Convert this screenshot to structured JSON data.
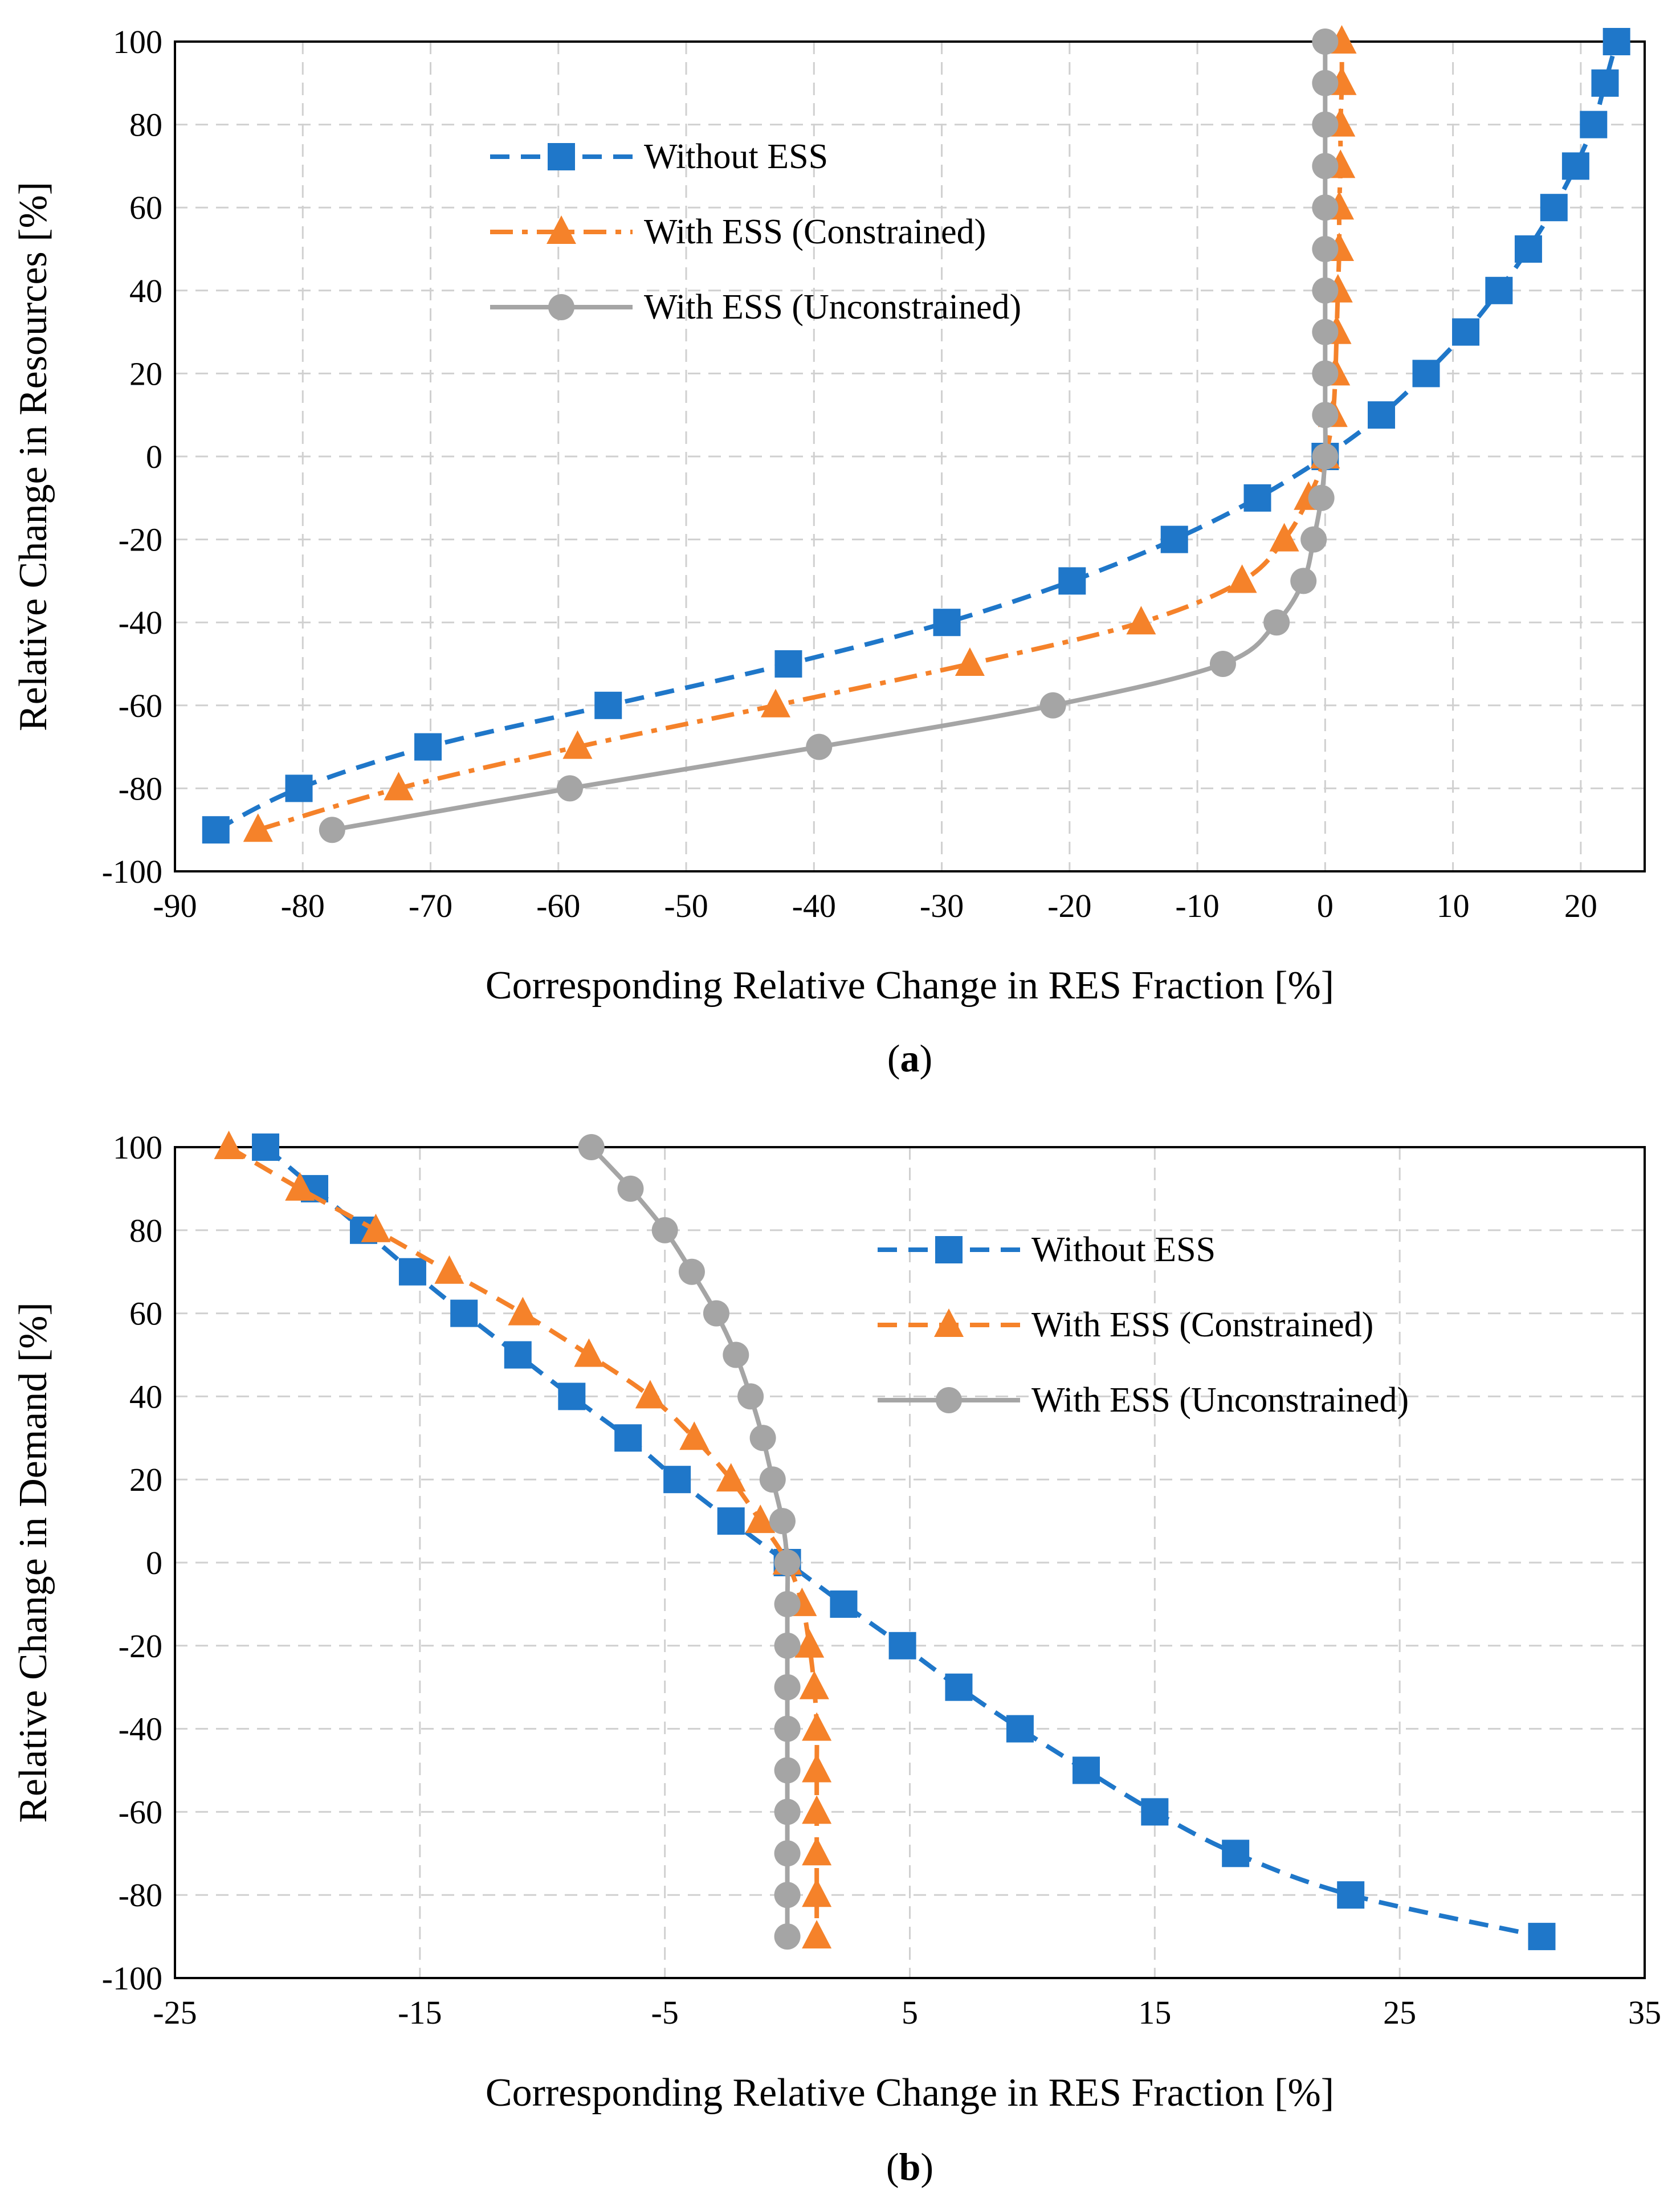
{
  "chart_data": [
    {
      "type": "line",
      "panel_label": "a",
      "xlabel": "Corresponding Relative Change in RES Fraction [%]",
      "ylabel": "Relative Change in Resources [%]",
      "xlim": [
        -90,
        25
      ],
      "ylim": [
        -100,
        100
      ],
      "xticks": [
        -90,
        -80,
        -70,
        -60,
        -50,
        -40,
        -30,
        -20,
        -10,
        0,
        10,
        20
      ],
      "yticks": [
        -100,
        -80,
        -60,
        -40,
        -20,
        0,
        20,
        40,
        60,
        80,
        100
      ],
      "grid": true,
      "legend_position": "upper-left-center",
      "series": [
        {
          "name": "Without ESS",
          "color": "#1f77c9",
          "marker": "square",
          "line": "dashed",
          "points": [
            [
              -86.8,
              -90
            ],
            [
              -80.3,
              -80
            ],
            [
              -70.2,
              -70
            ],
            [
              -56.1,
              -60
            ],
            [
              -42,
              -50
            ],
            [
              -29.6,
              -40
            ],
            [
              -19.8,
              -30
            ],
            [
              -11.8,
              -20
            ],
            [
              -5.3,
              -10
            ],
            [
              0,
              0
            ],
            [
              4.4,
              10
            ],
            [
              7.9,
              20
            ],
            [
              11,
              30
            ],
            [
              13.6,
              40
            ],
            [
              15.9,
              50
            ],
            [
              17.9,
              60
            ],
            [
              19.6,
              70
            ],
            [
              21,
              80
            ],
            [
              21.9,
              90
            ],
            [
              22.8,
              100
            ]
          ]
        },
        {
          "name": "With ESS (Constrained)",
          "color": "#f5822a",
          "marker": "triangle",
          "line": "dashdot",
          "points": [
            [
              -83.5,
              -90
            ],
            [
              -72.5,
              -80
            ],
            [
              -58.5,
              -70
            ],
            [
              -43,
              -60
            ],
            [
              -27.8,
              -50
            ],
            [
              -14.4,
              -40
            ],
            [
              -6.5,
              -30
            ],
            [
              -3.2,
              -20
            ],
            [
              -1.3,
              -10
            ],
            [
              0,
              0
            ],
            [
              0.6,
              10
            ],
            [
              0.8,
              20
            ],
            [
              0.9,
              30
            ],
            [
              1,
              40
            ],
            [
              1.1,
              50
            ],
            [
              1.1,
              60
            ],
            [
              1.2,
              70
            ],
            [
              1.2,
              80
            ],
            [
              1.3,
              90
            ],
            [
              1.3,
              100
            ]
          ]
        },
        {
          "name": "With ESS (Unconstrained)",
          "color": "#a5a5a5",
          "marker": "circle",
          "line": "solid",
          "points": [
            [
              -77.7,
              -90
            ],
            [
              -59.1,
              -80
            ],
            [
              -39.6,
              -70
            ],
            [
              -21.3,
              -60
            ],
            [
              -8,
              -50
            ],
            [
              -3.8,
              -40
            ],
            [
              -1.7,
              -30
            ],
            [
              -0.9,
              -20
            ],
            [
              -0.3,
              -10
            ],
            [
              0,
              0
            ],
            [
              0,
              10
            ],
            [
              0,
              20
            ],
            [
              0,
              30
            ],
            [
              0,
              40
            ],
            [
              0,
              50
            ],
            [
              0,
              60
            ],
            [
              0,
              70
            ],
            [
              0,
              80
            ],
            [
              0,
              90
            ],
            [
              0,
              100
            ]
          ]
        }
      ]
    },
    {
      "type": "line",
      "panel_label": "b",
      "xlabel": "Corresponding Relative Change in RES Fraction [%]",
      "ylabel": "Relative Change in Demand [%]",
      "xlim": [
        -25,
        35
      ],
      "ylim": [
        -100,
        100
      ],
      "xticks": [
        -25,
        -15,
        -5,
        5,
        15,
        25,
        35
      ],
      "yticks": [
        -100,
        -80,
        -60,
        -40,
        -20,
        0,
        20,
        40,
        60,
        80,
        100
      ],
      "grid": true,
      "legend_position": "upper-right-center",
      "series": [
        {
          "name": "Without ESS",
          "color": "#1f77c9",
          "marker": "square",
          "line": "dashed",
          "points": [
            [
              -21.3,
              100
            ],
            [
              -19.3,
              90
            ],
            [
              -17.3,
              80
            ],
            [
              -15.3,
              70
            ],
            [
              -13.2,
              60
            ],
            [
              -11,
              50
            ],
            [
              -8.8,
              40
            ],
            [
              -6.5,
              30
            ],
            [
              -4.5,
              20
            ],
            [
              -2.3,
              10
            ],
            [
              0,
              0
            ],
            [
              2.3,
              -10
            ],
            [
              4.7,
              -20
            ],
            [
              7,
              -30
            ],
            [
              9.5,
              -40
            ],
            [
              12.2,
              -50
            ],
            [
              15,
              -60
            ],
            [
              18.3,
              -70
            ],
            [
              23,
              -80
            ],
            [
              30.8,
              -90
            ]
          ]
        },
        {
          "name": "With ESS (Constrained)",
          "color": "#f5822a",
          "marker": "triangle",
          "line": "dashed",
          "points": [
            [
              -22.8,
              100
            ],
            [
              -19.9,
              90
            ],
            [
              -16.8,
              80
            ],
            [
              -13.8,
              70
            ],
            [
              -10.8,
              60
            ],
            [
              -8.1,
              50
            ],
            [
              -5.6,
              40
            ],
            [
              -3.8,
              30
            ],
            [
              -2.3,
              20
            ],
            [
              -1.1,
              10
            ],
            [
              0,
              0
            ],
            [
              0.6,
              -10
            ],
            [
              0.9,
              -20
            ],
            [
              1.1,
              -30
            ],
            [
              1.2,
              -40
            ],
            [
              1.2,
              -50
            ],
            [
              1.2,
              -60
            ],
            [
              1.2,
              -70
            ],
            [
              1.2,
              -80
            ],
            [
              1.2,
              -90
            ]
          ]
        },
        {
          "name": "With ESS (Unconstrained)",
          "color": "#a5a5a5",
          "marker": "circle",
          "line": "solid",
          "points": [
            [
              -8,
              100
            ],
            [
              -6.4,
              90
            ],
            [
              -5,
              80
            ],
            [
              -3.9,
              70
            ],
            [
              -2.9,
              60
            ],
            [
              -2.1,
              50
            ],
            [
              -1.5,
              40
            ],
            [
              -1,
              30
            ],
            [
              -0.6,
              20
            ],
            [
              -0.2,
              10
            ],
            [
              0,
              0
            ],
            [
              0,
              -10
            ],
            [
              0,
              -20
            ],
            [
              0,
              -30
            ],
            [
              0,
              -40
            ],
            [
              0,
              -50
            ],
            [
              0,
              -60
            ],
            [
              0,
              -70
            ],
            [
              0,
              -80
            ],
            [
              0,
              -90
            ]
          ]
        }
      ]
    }
  ]
}
